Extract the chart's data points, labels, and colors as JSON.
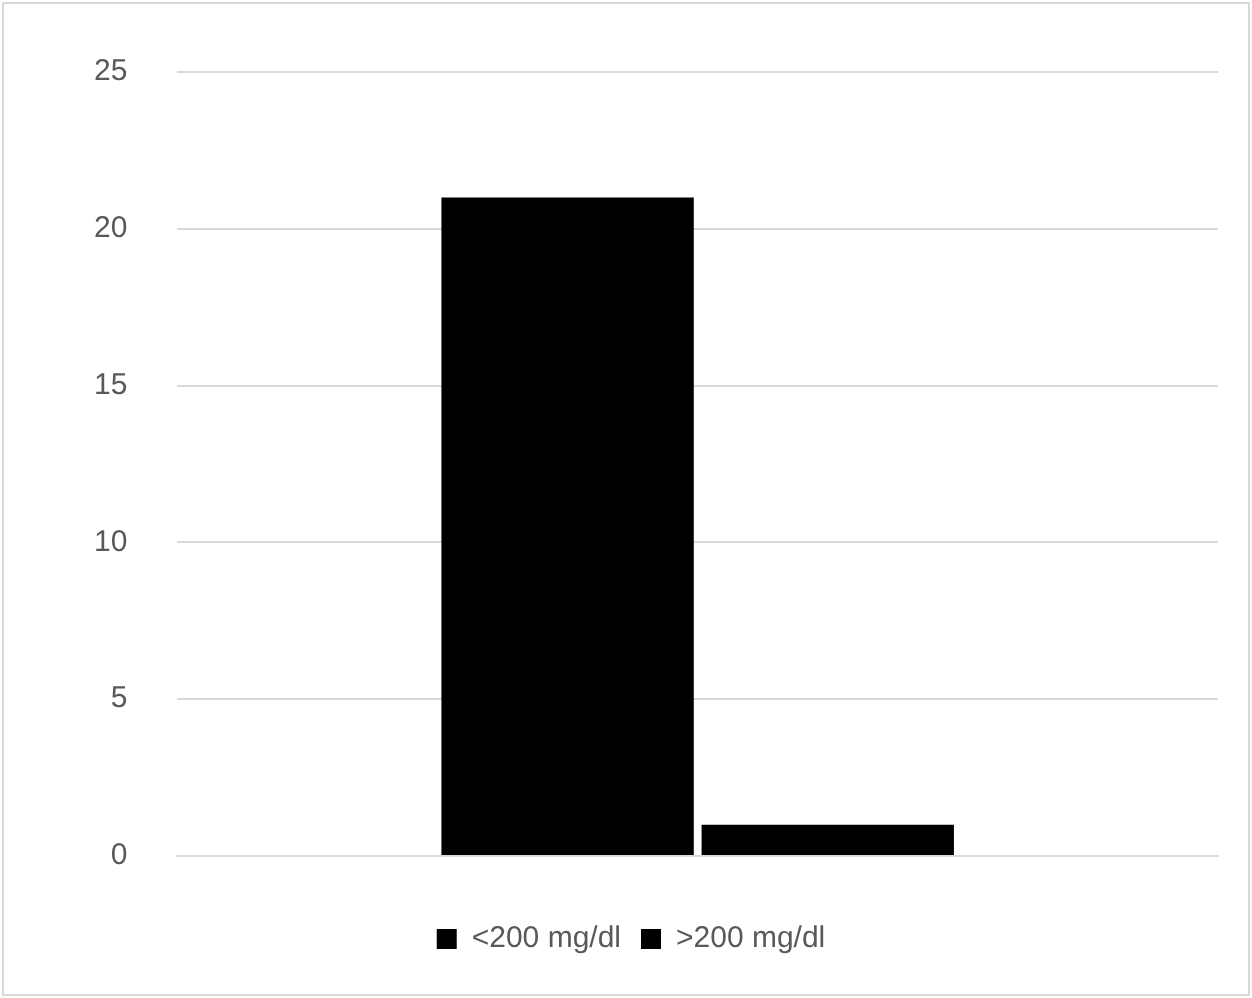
{
  "chart_data": {
    "type": "bar",
    "categories": [
      null
    ],
    "series": [
      {
        "name": "<200 mg/dl",
        "color": "#000000",
        "values": [
          21
        ]
      },
      {
        "name": ">200 mg/dl",
        "color": "#000000",
        "values": [
          1
        ]
      }
    ],
    "ylim": [
      0,
      25
    ],
    "yticks": [
      0,
      5,
      10,
      15,
      20,
      25
    ],
    "grid": "y",
    "legend": "bottom"
  }
}
